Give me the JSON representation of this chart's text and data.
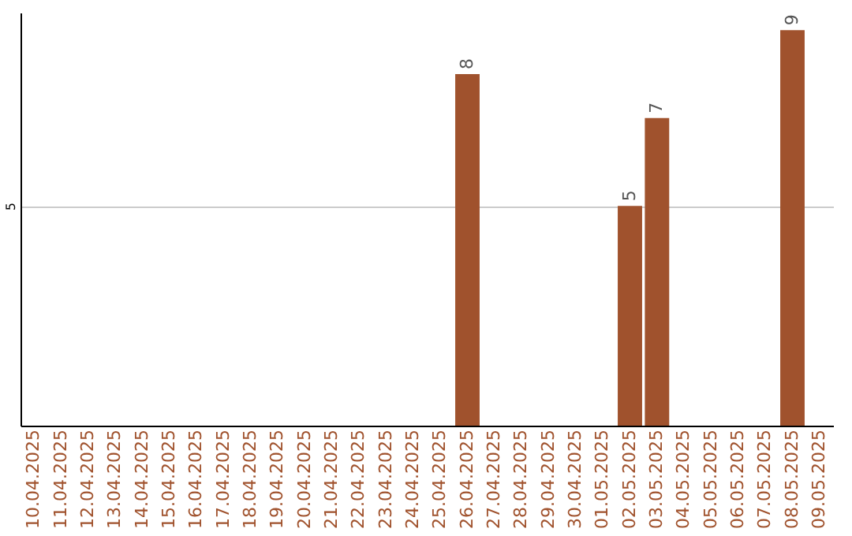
{
  "chart_data": {
    "type": "bar",
    "categories": [
      "10.04.2025",
      "11.04.2025",
      "12.04.2025",
      "13.04.2025",
      "14.04.2025",
      "15.04.2025",
      "16.04.2025",
      "17.04.2025",
      "18.04.2025",
      "19.04.2025",
      "20.04.2025",
      "21.04.2025",
      "22.04.2025",
      "23.04.2025",
      "24.04.2025",
      "25.04.2025",
      "26.04.2025",
      "27.04.2025",
      "28.04.2025",
      "29.04.2025",
      "30.04.2025",
      "01.05.2025",
      "02.05.2025",
      "03.05.2025",
      "04.05.2025",
      "05.05.2025",
      "06.05.2025",
      "07.05.2025",
      "08.05.2025",
      "09.05.2025"
    ],
    "values": [
      null,
      null,
      null,
      null,
      null,
      null,
      null,
      null,
      null,
      null,
      null,
      null,
      null,
      null,
      null,
      null,
      8,
      null,
      null,
      null,
      null,
      null,
      5,
      7,
      null,
      null,
      null,
      null,
      9,
      null
    ],
    "color": "#a0522d",
    "ylim": [
      0,
      9.4
    ],
    "yticks": [
      5
    ],
    "grid": "y",
    "data_labels": true
  }
}
